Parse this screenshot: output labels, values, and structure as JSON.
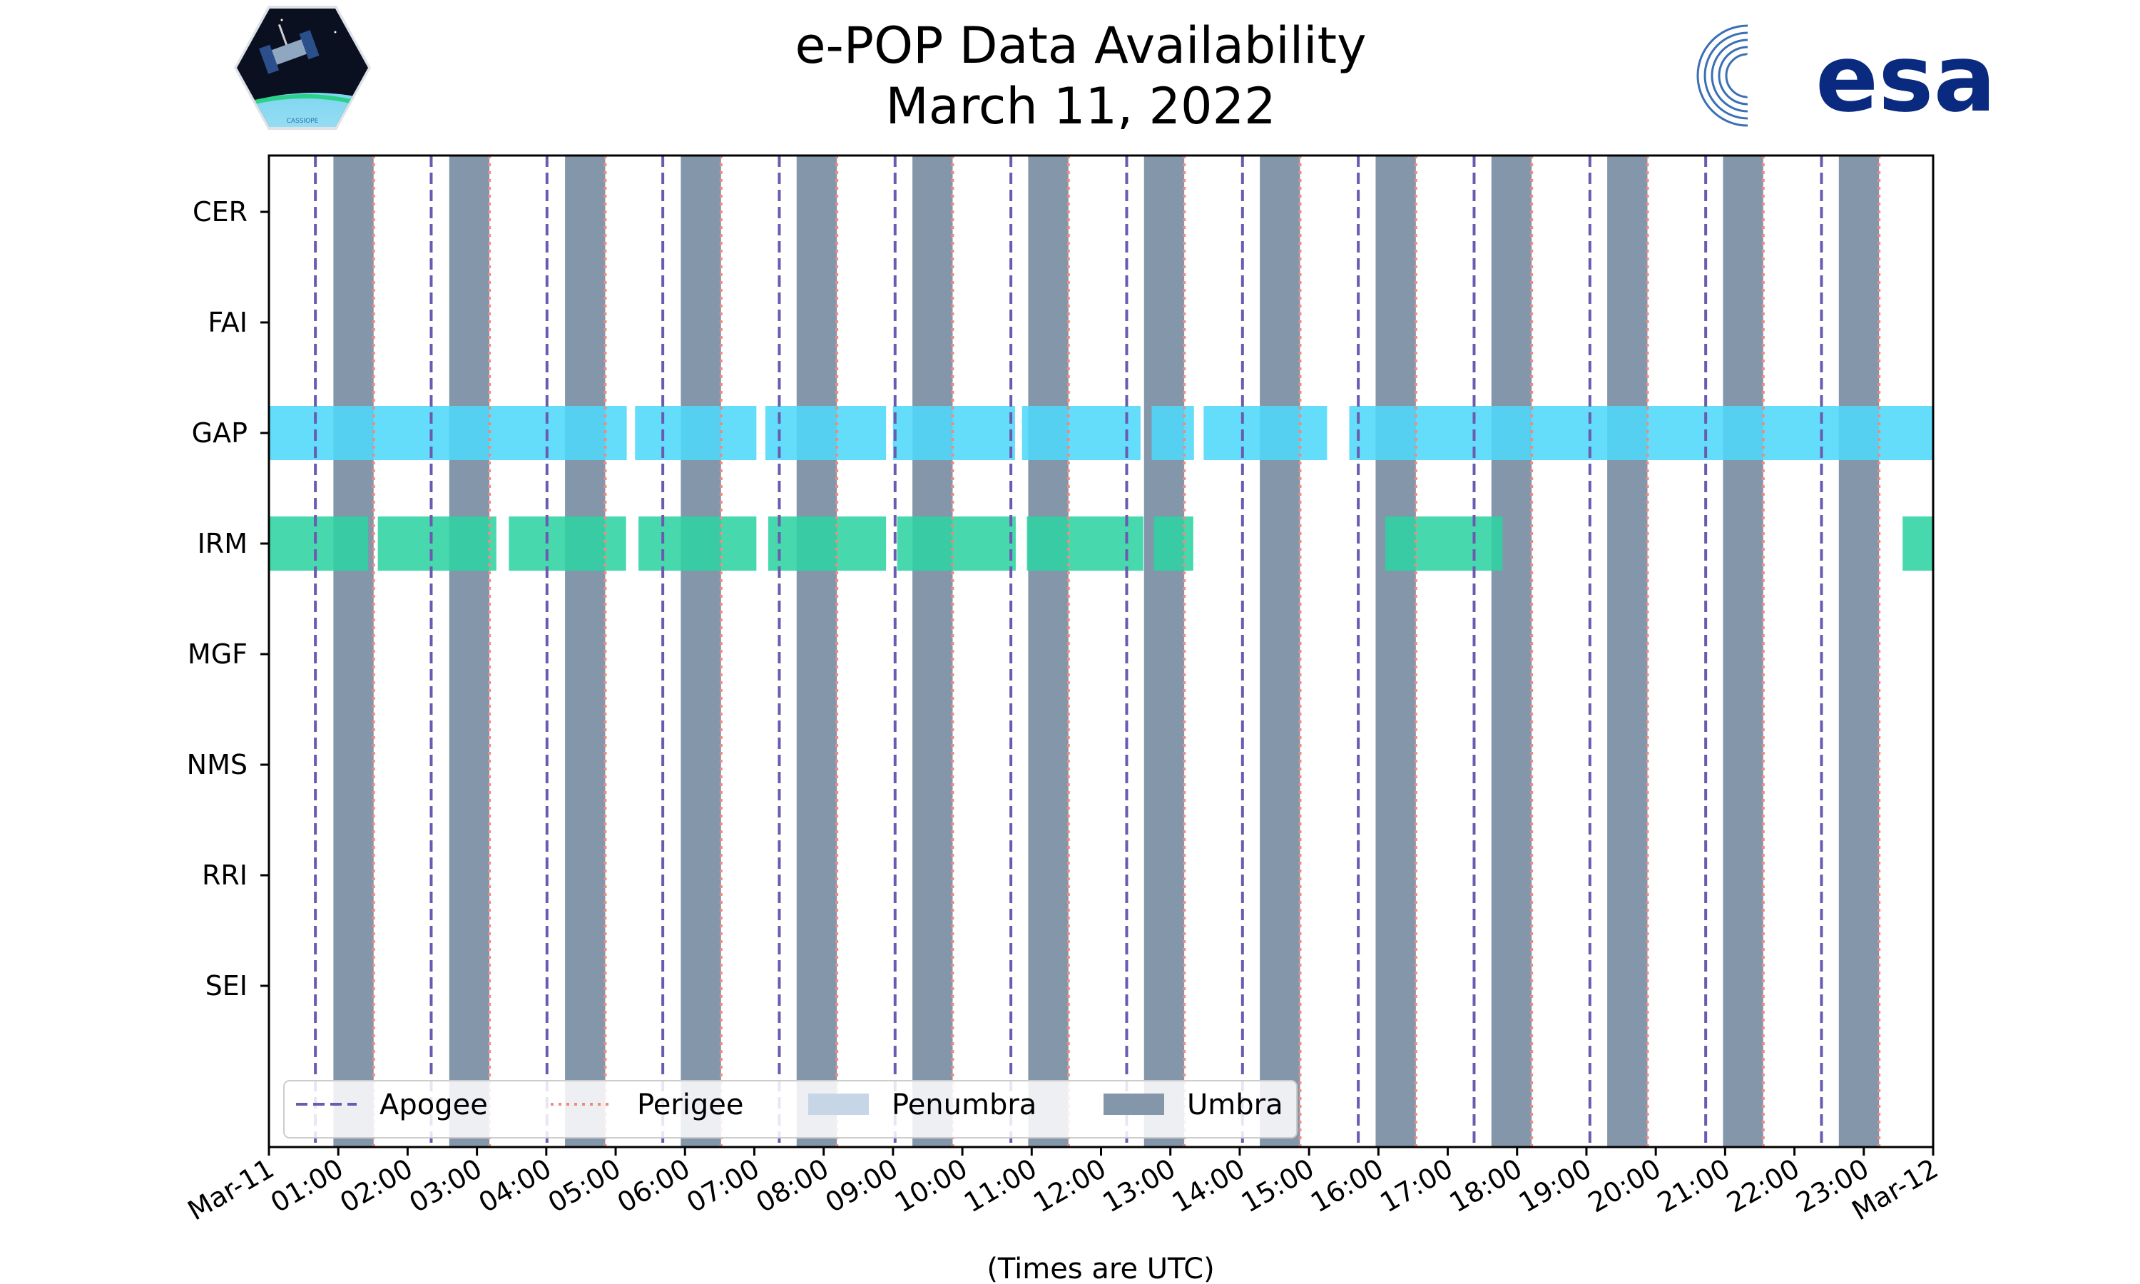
{
  "chart_data": {
    "type": "timeline",
    "title_line1": "e-POP Data Availability",
    "title_line2": "March 11, 2022",
    "xlabel": "(Times are UTC)",
    "x_unit": "hours",
    "x_range": [
      0,
      24
    ],
    "x_ticks": [
      {
        "hour": 0,
        "label": "Mar-11"
      },
      {
        "hour": 1,
        "label": "01:00"
      },
      {
        "hour": 2,
        "label": "02:00"
      },
      {
        "hour": 3,
        "label": "03:00"
      },
      {
        "hour": 4,
        "label": "04:00"
      },
      {
        "hour": 5,
        "label": "05:00"
      },
      {
        "hour": 6,
        "label": "06:00"
      },
      {
        "hour": 7,
        "label": "07:00"
      },
      {
        "hour": 8,
        "label": "08:00"
      },
      {
        "hour": 9,
        "label": "09:00"
      },
      {
        "hour": 10,
        "label": "10:00"
      },
      {
        "hour": 11,
        "label": "11:00"
      },
      {
        "hour": 12,
        "label": "12:00"
      },
      {
        "hour": 13,
        "label": "13:00"
      },
      {
        "hour": 14,
        "label": "14:00"
      },
      {
        "hour": 15,
        "label": "15:00"
      },
      {
        "hour": 16,
        "label": "16:00"
      },
      {
        "hour": 17,
        "label": "17:00"
      },
      {
        "hour": 18,
        "label": "18:00"
      },
      {
        "hour": 19,
        "label": "19:00"
      },
      {
        "hour": 20,
        "label": "20:00"
      },
      {
        "hour": 21,
        "label": "21:00"
      },
      {
        "hour": 22,
        "label": "22:00"
      },
      {
        "hour": 23,
        "label": "23:00"
      },
      {
        "hour": 24,
        "label": "Mar-12"
      }
    ],
    "instruments": [
      "CER",
      "FAI",
      "GAP",
      "IRM",
      "MGF",
      "NMS",
      "RRI",
      "SEI"
    ],
    "apogee_times": [
      0.67,
      2.34,
      4.01,
      5.68,
      7.36,
      9.03,
      10.7,
      12.37,
      14.04,
      15.71,
      17.38,
      19.05,
      20.72,
      22.39
    ],
    "perigee_times": [
      1.51,
      3.18,
      4.85,
      6.52,
      8.19,
      9.86,
      11.53,
      13.2,
      14.87,
      16.54,
      18.21,
      19.88,
      21.55,
      23.22
    ],
    "umbra_periods": [
      [
        0.93,
        1.51
      ],
      [
        2.6,
        3.18
      ],
      [
        4.27,
        4.85
      ],
      [
        5.94,
        6.52
      ],
      [
        7.61,
        8.19
      ],
      [
        9.28,
        9.86
      ],
      [
        10.95,
        11.53
      ],
      [
        12.62,
        13.2
      ],
      [
        14.29,
        14.87
      ],
      [
        15.96,
        16.54
      ],
      [
        17.63,
        18.21
      ],
      [
        19.3,
        19.88
      ],
      [
        20.97,
        21.55
      ],
      [
        22.64,
        23.22
      ]
    ],
    "penumbra_periods": [],
    "availability": {
      "GAP": [
        [
          0.0,
          5.16
        ],
        [
          5.28,
          7.03
        ],
        [
          7.16,
          8.9
        ],
        [
          9.0,
          10.76
        ],
        [
          10.86,
          12.57
        ],
        [
          12.73,
          13.34
        ],
        [
          13.48,
          15.26
        ],
        [
          15.58,
          24.0
        ]
      ],
      "IRM": [
        [
          0.0,
          1.43
        ],
        [
          1.57,
          3.28
        ],
        [
          3.46,
          5.15
        ],
        [
          5.33,
          7.03
        ],
        [
          7.2,
          8.9
        ],
        [
          9.06,
          10.77
        ],
        [
          10.93,
          12.61
        ],
        [
          12.76,
          13.33
        ],
        [
          16.1,
          17.79
        ],
        [
          23.56,
          24.0
        ]
      ]
    },
    "legend": {
      "position": "lower-left",
      "entries": [
        {
          "key": "apogee",
          "label": "Apogee"
        },
        {
          "key": "perigee",
          "label": "Perigee"
        },
        {
          "key": "penumbra",
          "label": "Penumbra"
        },
        {
          "key": "umbra",
          "label": "Umbra"
        }
      ]
    },
    "colors": {
      "apogee": "#6a5bb0",
      "perigee": "#f08a80",
      "umbra": "#8496a9",
      "penumbra": "#c7d6e6",
      "GAP": "#4fd8fa",
      "IRM": "#2dd3a3"
    }
  },
  "logos": {
    "left_caption": "CASSIOPE",
    "right_text": "esa"
  }
}
